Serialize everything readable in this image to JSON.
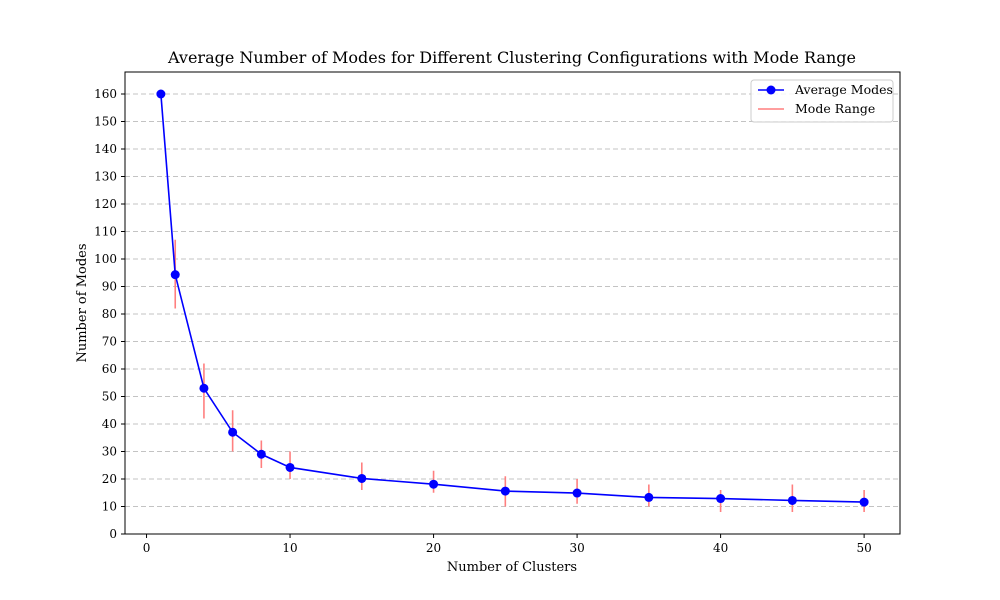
{
  "chart_data": {
    "type": "line",
    "title": "Average Number of Modes for Different Clustering Configurations with Mode Range",
    "xlabel": "Number of Clusters",
    "ylabel": "Number of Modes",
    "xlim": [
      -1.5,
      52.5
    ],
    "ylim": [
      0,
      168
    ],
    "xticks": [
      0,
      10,
      20,
      30,
      40,
      50
    ],
    "yticks": [
      0,
      10,
      20,
      30,
      40,
      50,
      60,
      70,
      80,
      90,
      100,
      110,
      120,
      130,
      140,
      150,
      160
    ],
    "grid": "y-dashed",
    "legend_position": "top-right",
    "x": [
      1,
      2,
      4,
      6,
      8,
      10,
      15,
      20,
      25,
      30,
      35,
      40,
      45,
      50
    ],
    "series": [
      {
        "name": "Average Modes",
        "color": "#0000ff",
        "marker": "circle",
        "values": [
          160,
          94.3,
          53,
          37,
          29,
          24.2,
          20.2,
          18.1,
          15.6,
          14.9,
          13.3,
          12.9,
          12.2,
          11.6
        ]
      }
    ],
    "range": {
      "name": "Mode Range",
      "color": "#ff7f7f",
      "min": [
        160,
        82,
        42,
        30,
        24,
        20,
        16,
        15,
        10,
        11,
        10,
        8,
        8,
        8
      ],
      "max": [
        160,
        107,
        62,
        45,
        34,
        30,
        26,
        23,
        21,
        20,
        18,
        16,
        18,
        16
      ]
    }
  }
}
